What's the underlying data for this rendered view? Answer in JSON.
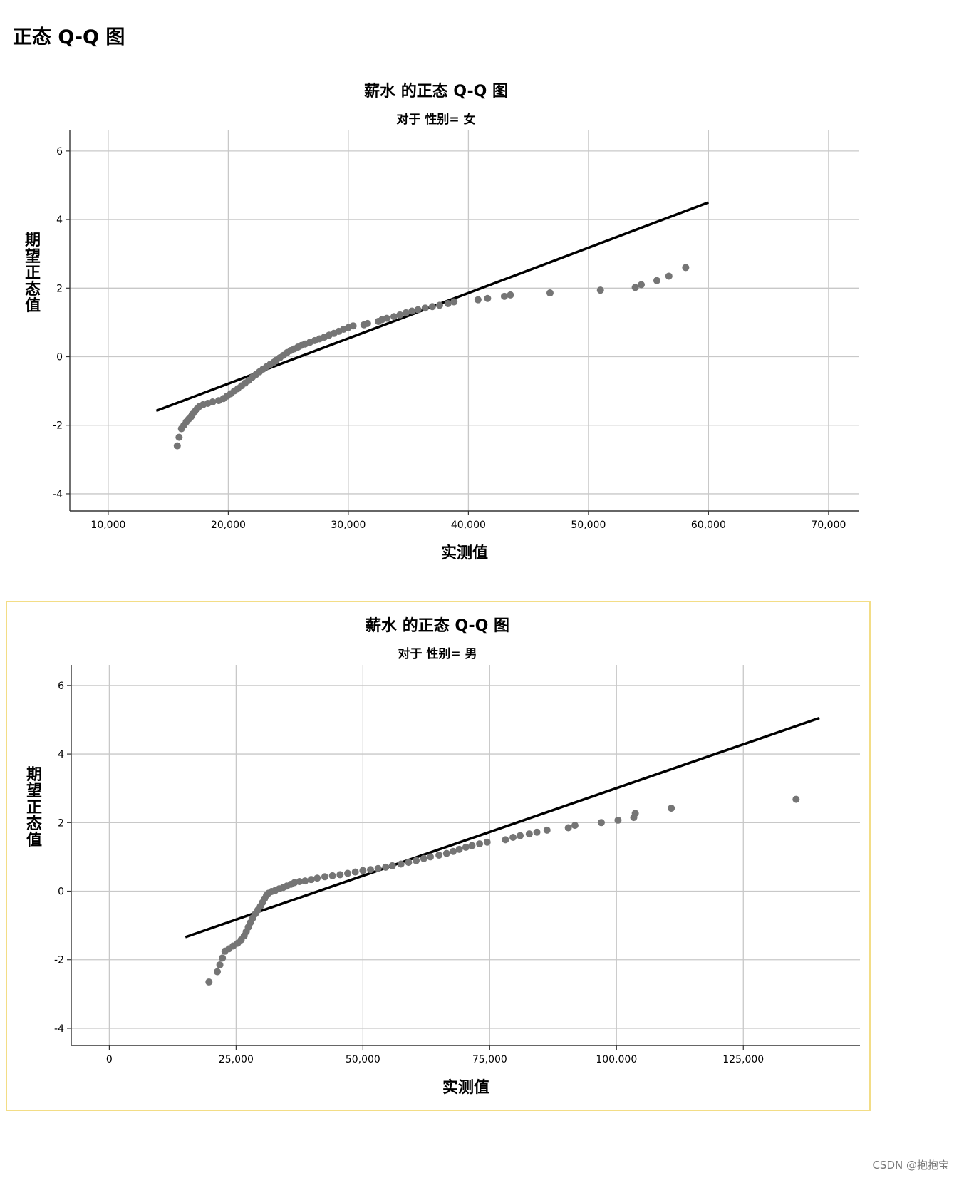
{
  "page": {
    "heading": "正态 Q-Q 图",
    "watermark": "CSDN @抱抱宝"
  },
  "colors": {
    "points": "#757575",
    "line": "#000000",
    "grid": "#c8c8c8",
    "axis": "#333333",
    "selection_border": "#f3dd86"
  },
  "chart_data": [
    {
      "type": "scatter",
      "title": "薪水 的正态 Q-Q 图",
      "subtitle": "对于 性别= 女",
      "xlabel": "实测值",
      "ylabel": "期望正态值",
      "xlim": [
        6800,
        72500
      ],
      "ylim": [
        -4.5,
        6.6
      ],
      "xticks": [
        10000,
        20000,
        30000,
        40000,
        50000,
        60000,
        70000
      ],
      "xtick_labels": [
        "10,000",
        "20,000",
        "30,000",
        "40,000",
        "50,000",
        "60,000",
        "70,000"
      ],
      "yticks": [
        -4,
        -2,
        0,
        2,
        4,
        6
      ],
      "ytick_labels": [
        "-4",
        "-2",
        "0",
        "2",
        "4",
        "6"
      ],
      "grid": true,
      "reference_line": {
        "x": [
          14000,
          60000
        ],
        "y": [
          -1.58,
          4.5
        ]
      },
      "points": [
        [
          15750,
          -2.6
        ],
        [
          15900,
          -2.35
        ],
        [
          16100,
          -2.1
        ],
        [
          16300,
          -2.0
        ],
        [
          16500,
          -1.9
        ],
        [
          16700,
          -1.82
        ],
        [
          16900,
          -1.75
        ],
        [
          17000,
          -1.68
        ],
        [
          17200,
          -1.6
        ],
        [
          17400,
          -1.52
        ],
        [
          17600,
          -1.45
        ],
        [
          17900,
          -1.4
        ],
        [
          18300,
          -1.36
        ],
        [
          18700,
          -1.32
        ],
        [
          19200,
          -1.28
        ],
        [
          19600,
          -1.22
        ],
        [
          19900,
          -1.15
        ],
        [
          20200,
          -1.08
        ],
        [
          20500,
          -1.0
        ],
        [
          20800,
          -0.93
        ],
        [
          21100,
          -0.85
        ],
        [
          21400,
          -0.77
        ],
        [
          21700,
          -0.69
        ],
        [
          22000,
          -0.6
        ],
        [
          22300,
          -0.52
        ],
        [
          22600,
          -0.44
        ],
        [
          22900,
          -0.36
        ],
        [
          23200,
          -0.29
        ],
        [
          23500,
          -0.22
        ],
        [
          23800,
          -0.16
        ],
        [
          24000,
          -0.1
        ],
        [
          24300,
          -0.03
        ],
        [
          24600,
          0.04
        ],
        [
          24900,
          0.12
        ],
        [
          25200,
          0.18
        ],
        [
          25500,
          0.23
        ],
        [
          25800,
          0.28
        ],
        [
          26100,
          0.33
        ],
        [
          26400,
          0.37
        ],
        [
          26800,
          0.42
        ],
        [
          27200,
          0.47
        ],
        [
          27600,
          0.52
        ],
        [
          28000,
          0.57
        ],
        [
          28400,
          0.63
        ],
        [
          28800,
          0.68
        ],
        [
          29200,
          0.74
        ],
        [
          29600,
          0.8
        ],
        [
          30000,
          0.85
        ],
        [
          30400,
          0.9
        ],
        [
          31300,
          0.93
        ],
        [
          31600,
          0.97
        ],
        [
          32500,
          1.03
        ],
        [
          32800,
          1.08
        ],
        [
          33200,
          1.12
        ],
        [
          33800,
          1.17
        ],
        [
          34300,
          1.22
        ],
        [
          34800,
          1.28
        ],
        [
          35300,
          1.33
        ],
        [
          35800,
          1.37
        ],
        [
          36400,
          1.42
        ],
        [
          37000,
          1.46
        ],
        [
          37600,
          1.5
        ],
        [
          38300,
          1.55
        ],
        [
          38800,
          1.6
        ],
        [
          40800,
          1.66
        ],
        [
          41600,
          1.7
        ],
        [
          43000,
          1.76
        ],
        [
          43500,
          1.8
        ],
        [
          46800,
          1.86
        ],
        [
          51000,
          1.94
        ],
        [
          53900,
          2.02
        ],
        [
          54400,
          2.1
        ],
        [
          55700,
          2.22
        ],
        [
          56700,
          2.35
        ],
        [
          58100,
          2.6
        ]
      ]
    },
    {
      "type": "scatter",
      "title": "薪水 的正态 Q-Q 图",
      "subtitle": "对于 性别= 男",
      "xlabel": "实测值",
      "ylabel": "期望正态值",
      "xlim": [
        -7500,
        148000
      ],
      "ylim": [
        -4.5,
        6.6
      ],
      "xticks": [
        0,
        25000,
        50000,
        75000,
        100000,
        125000
      ],
      "xtick_labels": [
        "0",
        "25,000",
        "50,000",
        "75,000",
        "100,000",
        "125,000"
      ],
      "yticks": [
        -4,
        -2,
        0,
        2,
        4,
        6
      ],
      "ytick_labels": [
        "-4",
        "-2",
        "0",
        "2",
        "4",
        "6"
      ],
      "grid": true,
      "reference_line": {
        "x": [
          15000,
          140000
        ],
        "y": [
          -1.34,
          5.05
        ]
      },
      "points": [
        [
          19650,
          -2.65
        ],
        [
          21300,
          -2.35
        ],
        [
          21800,
          -2.15
        ],
        [
          22300,
          -1.95
        ],
        [
          22800,
          -1.75
        ],
        [
          23600,
          -1.68
        ],
        [
          24400,
          -1.6
        ],
        [
          25300,
          -1.52
        ],
        [
          26000,
          -1.42
        ],
        [
          26600,
          -1.3
        ],
        [
          27000,
          -1.18
        ],
        [
          27400,
          -1.05
        ],
        [
          27800,
          -0.92
        ],
        [
          28300,
          -0.78
        ],
        [
          28800,
          -0.66
        ],
        [
          29300,
          -0.55
        ],
        [
          29800,
          -0.44
        ],
        [
          30200,
          -0.33
        ],
        [
          30600,
          -0.22
        ],
        [
          31000,
          -0.12
        ],
        [
          31400,
          -0.06
        ],
        [
          32000,
          -0.01
        ],
        [
          32700,
          0.02
        ],
        [
          33500,
          0.07
        ],
        [
          34300,
          0.11
        ],
        [
          35000,
          0.15
        ],
        [
          35800,
          0.2
        ],
        [
          36500,
          0.25
        ],
        [
          37500,
          0.28
        ],
        [
          38600,
          0.3
        ],
        [
          39800,
          0.34
        ],
        [
          41000,
          0.38
        ],
        [
          42500,
          0.42
        ],
        [
          44000,
          0.45
        ],
        [
          45500,
          0.48
        ],
        [
          47000,
          0.52
        ],
        [
          48500,
          0.56
        ],
        [
          50000,
          0.6
        ],
        [
          51500,
          0.63
        ],
        [
          53000,
          0.66
        ],
        [
          54500,
          0.7
        ],
        [
          55800,
          0.74
        ],
        [
          57500,
          0.79
        ],
        [
          59000,
          0.84
        ],
        [
          60500,
          0.89
        ],
        [
          62000,
          0.95
        ],
        [
          63300,
          1.0
        ],
        [
          65000,
          1.05
        ],
        [
          66500,
          1.1
        ],
        [
          67800,
          1.16
        ],
        [
          69000,
          1.22
        ],
        [
          70300,
          1.28
        ],
        [
          71500,
          1.33
        ],
        [
          73000,
          1.38
        ],
        [
          74500,
          1.43
        ],
        [
          78100,
          1.5
        ],
        [
          79600,
          1.57
        ],
        [
          81000,
          1.62
        ],
        [
          82800,
          1.67
        ],
        [
          84300,
          1.72
        ],
        [
          86300,
          1.78
        ],
        [
          90500,
          1.85
        ],
        [
          91800,
          1.92
        ],
        [
          97000,
          2.0
        ],
        [
          100300,
          2.07
        ],
        [
          103400,
          2.15
        ],
        [
          103700,
          2.27
        ],
        [
          110800,
          2.42
        ],
        [
          135400,
          2.68
        ]
      ]
    }
  ]
}
